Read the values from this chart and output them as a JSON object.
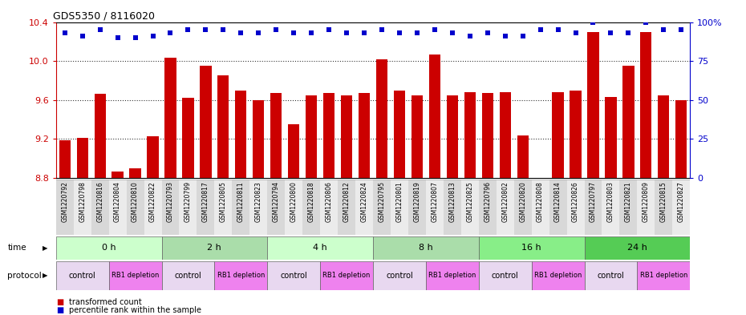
{
  "title": "GDS5350 / 8116020",
  "samples": [
    "GSM1220792",
    "GSM1220798",
    "GSM1220816",
    "GSM1220804",
    "GSM1220810",
    "GSM1220822",
    "GSM1220793",
    "GSM1220799",
    "GSM1220817",
    "GSM1220805",
    "GSM1220811",
    "GSM1220823",
    "GSM1220794",
    "GSM1220800",
    "GSM1220818",
    "GSM1220806",
    "GSM1220812",
    "GSM1220824",
    "GSM1220795",
    "GSM1220801",
    "GSM1220819",
    "GSM1220807",
    "GSM1220813",
    "GSM1220825",
    "GSM1220796",
    "GSM1220802",
    "GSM1220820",
    "GSM1220808",
    "GSM1220814",
    "GSM1220826",
    "GSM1220797",
    "GSM1220803",
    "GSM1220821",
    "GSM1220809",
    "GSM1220815",
    "GSM1220827"
  ],
  "bar_values": [
    9.19,
    9.21,
    9.66,
    8.87,
    8.9,
    9.23,
    10.03,
    9.62,
    9.95,
    9.85,
    9.7,
    9.6,
    9.67,
    9.35,
    9.65,
    9.67,
    9.65,
    9.67,
    10.02,
    9.7,
    9.65,
    10.07,
    9.65,
    9.68,
    9.67,
    9.68,
    9.24,
    8.75,
    9.68,
    9.7,
    10.3,
    9.63,
    9.95,
    10.3,
    9.65,
    9.6
  ],
  "percentile_values": [
    93,
    91,
    95,
    90,
    90,
    91,
    93,
    95,
    95,
    95,
    93,
    93,
    95,
    93,
    93,
    95,
    93,
    93,
    95,
    93,
    93,
    95,
    93,
    91,
    93,
    91,
    91,
    95,
    95,
    93,
    100,
    93,
    93,
    100,
    95,
    95
  ],
  "time_groups": [
    {
      "label": "0 h",
      "start": 0,
      "end": 6,
      "color": "#ccffcc"
    },
    {
      "label": "2 h",
      "start": 6,
      "end": 12,
      "color": "#aaddaa"
    },
    {
      "label": "4 h",
      "start": 12,
      "end": 18,
      "color": "#ccffcc"
    },
    {
      "label": "8 h",
      "start": 18,
      "end": 24,
      "color": "#aaddaa"
    },
    {
      "label": "16 h",
      "start": 24,
      "end": 30,
      "color": "#88ee88"
    },
    {
      "label": "24 h",
      "start": 30,
      "end": 36,
      "color": "#55cc55"
    }
  ],
  "protocol_groups": [
    {
      "label": "control",
      "start": 0,
      "end": 3,
      "color": "#e8d8f0"
    },
    {
      "label": "RB1 depletion",
      "start": 3,
      "end": 6,
      "color": "#ee82ee"
    },
    {
      "label": "control",
      "start": 6,
      "end": 9,
      "color": "#e8d8f0"
    },
    {
      "label": "RB1 depletion",
      "start": 9,
      "end": 12,
      "color": "#ee82ee"
    },
    {
      "label": "control",
      "start": 12,
      "end": 15,
      "color": "#e8d8f0"
    },
    {
      "label": "RB1 depletion",
      "start": 15,
      "end": 18,
      "color": "#ee82ee"
    },
    {
      "label": "control",
      "start": 18,
      "end": 21,
      "color": "#e8d8f0"
    },
    {
      "label": "RB1 depletion",
      "start": 21,
      "end": 24,
      "color": "#ee82ee"
    },
    {
      "label": "control",
      "start": 24,
      "end": 27,
      "color": "#e8d8f0"
    },
    {
      "label": "RB1 depletion",
      "start": 27,
      "end": 30,
      "color": "#ee82ee"
    },
    {
      "label": "control",
      "start": 30,
      "end": 33,
      "color": "#e8d8f0"
    },
    {
      "label": "RB1 depletion",
      "start": 33,
      "end": 36,
      "color": "#ee82ee"
    }
  ],
  "bar_color": "#cc0000",
  "percentile_color": "#0000cc",
  "ylim_left": [
    8.8,
    10.4
  ],
  "ylim_right": [
    0,
    100
  ],
  "yticks_left": [
    8.8,
    9.2,
    9.6,
    10.0,
    10.4
  ],
  "yticks_right": [
    0,
    25,
    50,
    75,
    100
  ],
  "ytick_labels_right": [
    "0",
    "25",
    "50",
    "75",
    "100%"
  ],
  "bg_color": "#ffffff",
  "xlabel_bg_even": "#d8d8d8",
  "xlabel_bg_odd": "#ebebeb"
}
